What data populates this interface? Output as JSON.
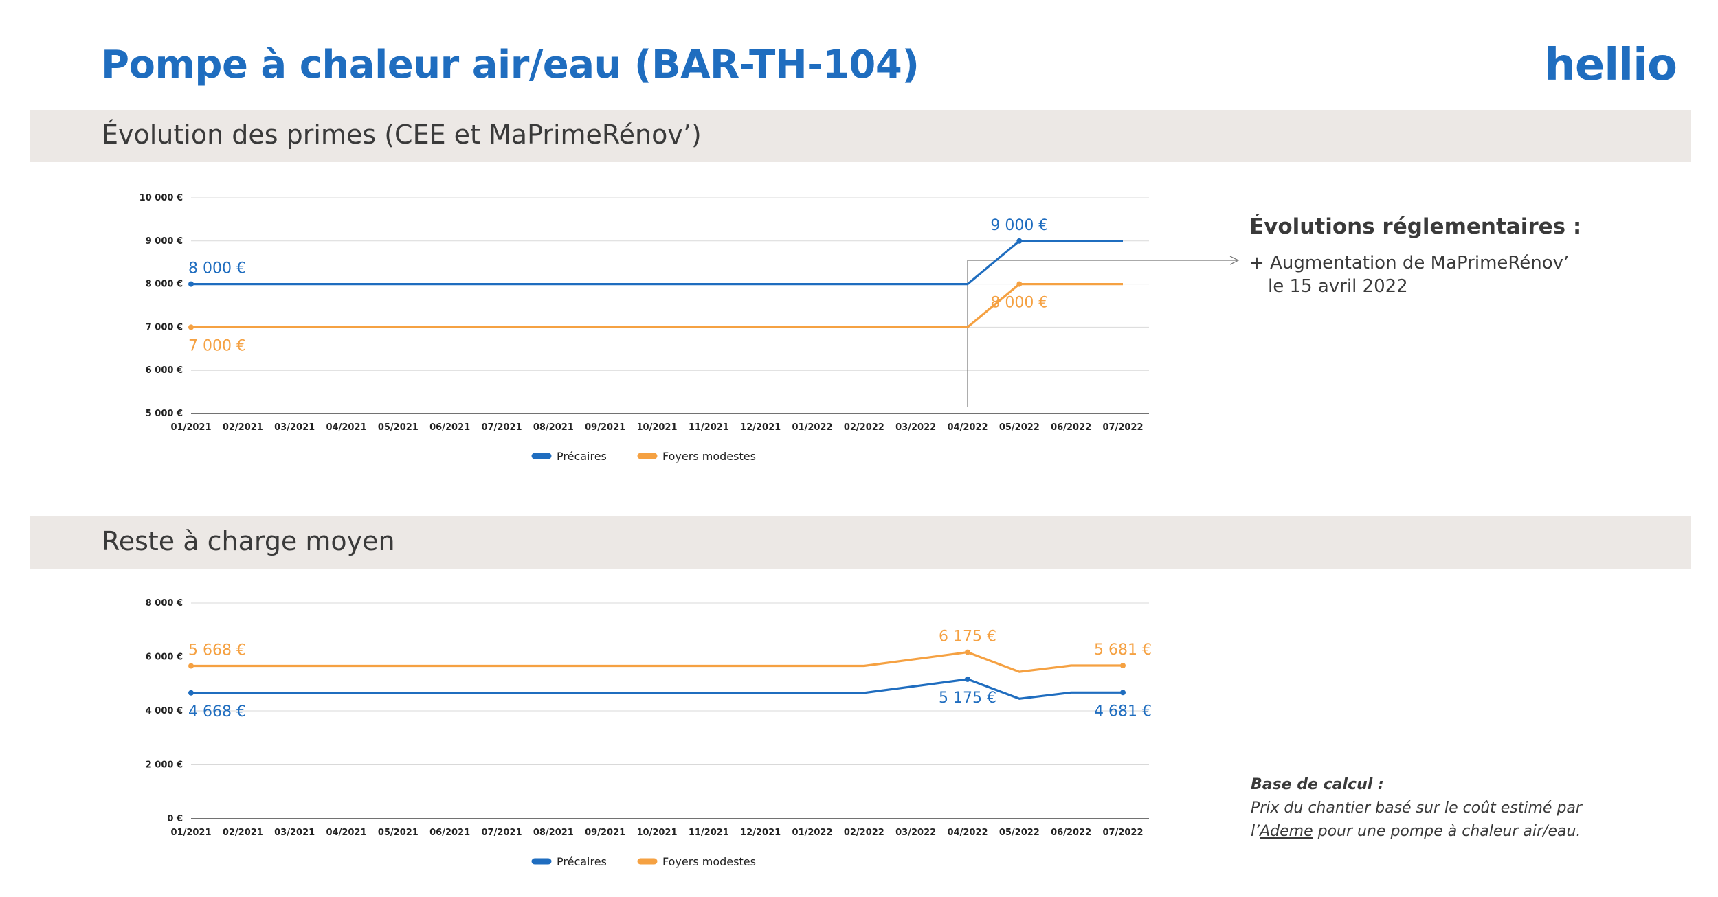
{
  "header": {
    "title": "Pompe à chaleur air/eau (BAR-TH-104)",
    "logo": "hellio"
  },
  "colors": {
    "brand": "#1f6dbf",
    "precaires": "#1f6dbf",
    "foyers_modestes": "#f5a142",
    "band": "#ece8e5"
  },
  "section1": {
    "title": "Évolution des primes (CEE et MaPrimeRénov’)"
  },
  "section2": {
    "title": "Reste à charge moyen"
  },
  "regulatory": {
    "title": "Évolutions réglementaires :",
    "item_line1": "+ Augmentation de MaPrimeRénov’",
    "item_line2": "le 15 avril 2022"
  },
  "basis": {
    "title": "Base de calcul :",
    "line1": "Prix du chantier basé sur le coût estimé par",
    "line2_prefix": "l’",
    "line2_link": "Ademe",
    "line2_suffix": " pour une pompe à chaleur air/eau."
  },
  "chart_data": [
    {
      "type": "line",
      "categories": [
        "01/2021",
        "02/2021",
        "03/2021",
        "04/2021",
        "05/2021",
        "06/2021",
        "07/2021",
        "08/2021",
        "09/2021",
        "10/2021",
        "11/2021",
        "12/2021",
        "01/2022",
        "02/2022",
        "03/2022",
        "04/2022",
        "05/2022",
        "06/2022",
        "07/2022"
      ],
      "series": [
        {
          "name": "Précaires",
          "color": "#1f6dbf",
          "values": [
            8000,
            8000,
            8000,
            8000,
            8000,
            8000,
            8000,
            8000,
            8000,
            8000,
            8000,
            8000,
            8000,
            8000,
            8000,
            8000,
            9000,
            9000,
            9000
          ]
        },
        {
          "name": "Foyers modestes",
          "color": "#f5a142",
          "values": [
            7000,
            7000,
            7000,
            7000,
            7000,
            7000,
            7000,
            7000,
            7000,
            7000,
            7000,
            7000,
            7000,
            7000,
            7000,
            7000,
            8000,
            8000,
            8000
          ]
        }
      ],
      "yticks": [
        "5 000 €",
        "6 000 €",
        "7 000 €",
        "8 000 €",
        "9 000 €",
        "10 000 €"
      ],
      "ylim": [
        5000,
        10000
      ],
      "grid": true,
      "legend": "bottom",
      "data_labels": [
        {
          "series": 0,
          "index": 0,
          "text": "8 000 €",
          "pos": "above"
        },
        {
          "series": 1,
          "index": 0,
          "text": "7 000 €",
          "pos": "below"
        },
        {
          "series": 0,
          "index": 16,
          "text": "9 000 €",
          "pos": "above"
        },
        {
          "series": 1,
          "index": 16,
          "text": "8 000 €",
          "pos": "below"
        }
      ],
      "annotation": {
        "index": 15,
        "target": "regulatory"
      }
    },
    {
      "type": "line",
      "categories": [
        "01/2021",
        "02/2021",
        "03/2021",
        "04/2021",
        "05/2021",
        "06/2021",
        "07/2021",
        "08/2021",
        "09/2021",
        "10/2021",
        "11/2021",
        "12/2021",
        "01/2022",
        "02/2022",
        "03/2022",
        "04/2022",
        "05/2022",
        "06/2022",
        "07/2022"
      ],
      "series": [
        {
          "name": "Précaires",
          "color": "#1f6dbf",
          "values": [
            4668,
            4668,
            4668,
            4668,
            4668,
            4668,
            4668,
            4668,
            4668,
            4668,
            4668,
            4668,
            4668,
            4668,
            4920,
            5175,
            4450,
            4681,
            4681
          ]
        },
        {
          "name": "Foyers modestes",
          "color": "#f5a142",
          "values": [
            5668,
            5668,
            5668,
            5668,
            5668,
            5668,
            5668,
            5668,
            5668,
            5668,
            5668,
            5668,
            5668,
            5668,
            5920,
            6175,
            5450,
            5681,
            5681
          ]
        }
      ],
      "yticks": [
        "0 €",
        "2 000 €",
        "4 000 €",
        "6 000 €",
        "8 000 €"
      ],
      "ylim": [
        0,
        8000
      ],
      "grid": true,
      "legend": "bottom",
      "data_labels": [
        {
          "series": 1,
          "index": 0,
          "text": "5 668 €",
          "pos": "above"
        },
        {
          "series": 0,
          "index": 0,
          "text": "4 668 €",
          "pos": "below"
        },
        {
          "series": 1,
          "index": 15,
          "text": "6 175 €",
          "pos": "above"
        },
        {
          "series": 0,
          "index": 15,
          "text": "5 175 €",
          "pos": "below"
        },
        {
          "series": 1,
          "index": 18,
          "text": "5 681 €",
          "pos": "above"
        },
        {
          "series": 0,
          "index": 18,
          "text": "4 681 €",
          "pos": "below"
        }
      ]
    }
  ]
}
